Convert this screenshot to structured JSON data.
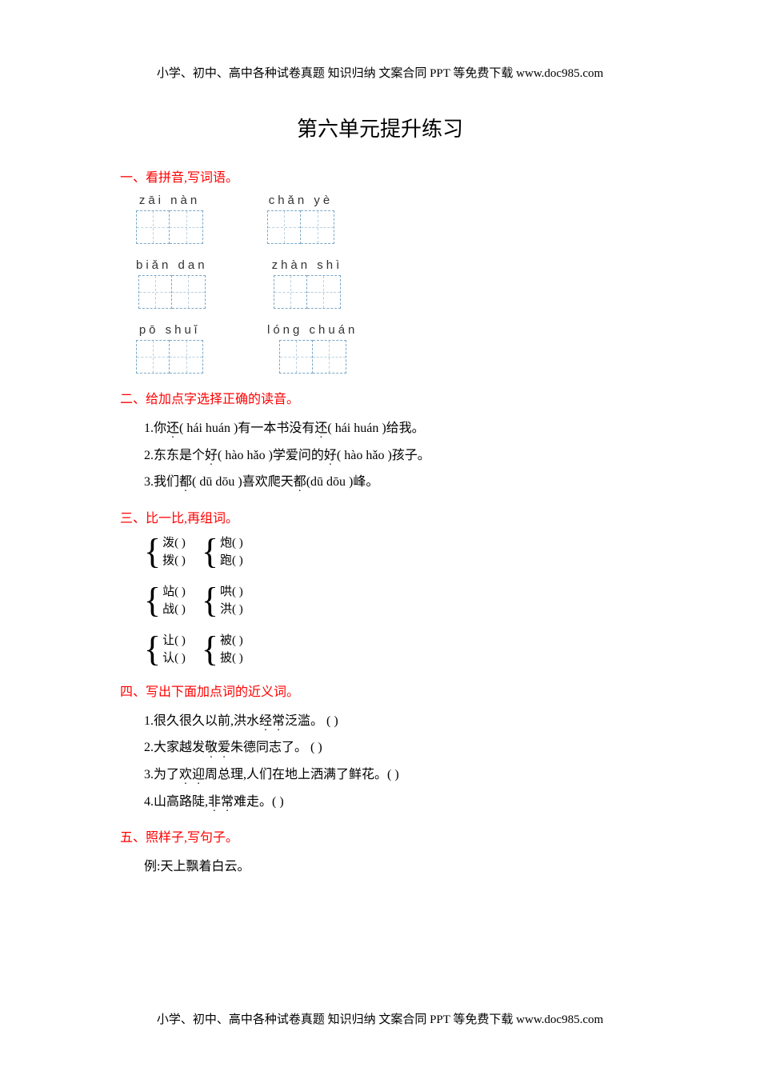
{
  "header_text": "小学、初中、高中各种试卷真题 知识归纳 文案合同 PPT 等免费下载  www.doc985.com",
  "footer_text": "小学、初中、高中各种试卷真题 知识归纳 文案合同 PPT 等免费下载  www.doc985.com",
  "title": "第六单元提升练习",
  "colors": {
    "section_head": "#ff0000",
    "body_text": "#000000",
    "box_border": "#7aa7c7",
    "box_inner": "#b8d0e0",
    "background": "#ffffff"
  },
  "fonts": {
    "body_family": "SimSun",
    "body_size_pt": 12,
    "title_size_pt": 20,
    "section_size_pt": 12
  },
  "section1": {
    "head": "一、看拼音,写词语。",
    "rows": [
      {
        "items": [
          {
            "pinyin": "zāi  nàn",
            "boxes": 2
          },
          {
            "pinyin": "chǎn  yè",
            "boxes": 2
          }
        ]
      },
      {
        "items": [
          {
            "pinyin": "biǎn  dan",
            "boxes": 2
          },
          {
            "pinyin": "zhàn  shì",
            "boxes": 2
          }
        ]
      },
      {
        "items": [
          {
            "pinyin": "pō  shuǐ",
            "boxes": 2
          },
          {
            "pinyin": "lóng chuán",
            "boxes": 2
          }
        ]
      }
    ]
  },
  "section2": {
    "head": "二、给加点字选择正确的读音。",
    "lines": [
      {
        "pre": "1.你",
        "dot1": "还",
        "mid1": "( hái  huán )有一本书没有",
        "dot2": "还",
        "mid2": "( hái  huán )给我。"
      },
      {
        "pre": "2.东东是个",
        "dot1": "好",
        "mid1": "( hào  hǎo )学爱问的",
        "dot2": "好",
        "mid2": "( hào  hǎo )孩子。"
      },
      {
        "pre": "3.我们",
        "dot1": "都",
        "mid1": "( dū  dōu )喜欢爬天",
        "dot2": "都",
        "mid2": "(dū  dōu )峰。"
      }
    ]
  },
  "section3": {
    "head": "三、比一比,再组词。",
    "rows": [
      {
        "left": {
          "a": "泼(           )",
          "b": "拨(           )"
        },
        "right": {
          "a": "炮(           )",
          "b": "跑(           )"
        }
      },
      {
        "left": {
          "a": "站(           )",
          "b": "战(           )"
        },
        "right": {
          "a": "哄(           )",
          "b": "洪(           )"
        }
      },
      {
        "left": {
          "a": "让(           )",
          "b": "认(           )"
        },
        "right": {
          "a": "被(           )",
          "b": "披(           )"
        }
      }
    ]
  },
  "section4": {
    "head": "四、写出下面加点词的近义词。",
    "lines": [
      {
        "pre": "1.很久很久以前,洪水",
        "dot": "经常",
        "post": "泛滥。  (       )"
      },
      {
        "pre": "2.大家越发",
        "dot": "敬爱",
        "post": "朱德同志了。  (       )"
      },
      {
        "pre": "3.为了",
        "dot": "欢迎",
        "post": "周总理,人们在地上洒满了鲜花。(       )"
      },
      {
        "pre": "4.山高路陡,",
        "dot": "非常",
        "post": "难走。(       )"
      }
    ]
  },
  "section5": {
    "head": "五、照样子,写句子。",
    "example": "例:天上飘着白云。"
  }
}
